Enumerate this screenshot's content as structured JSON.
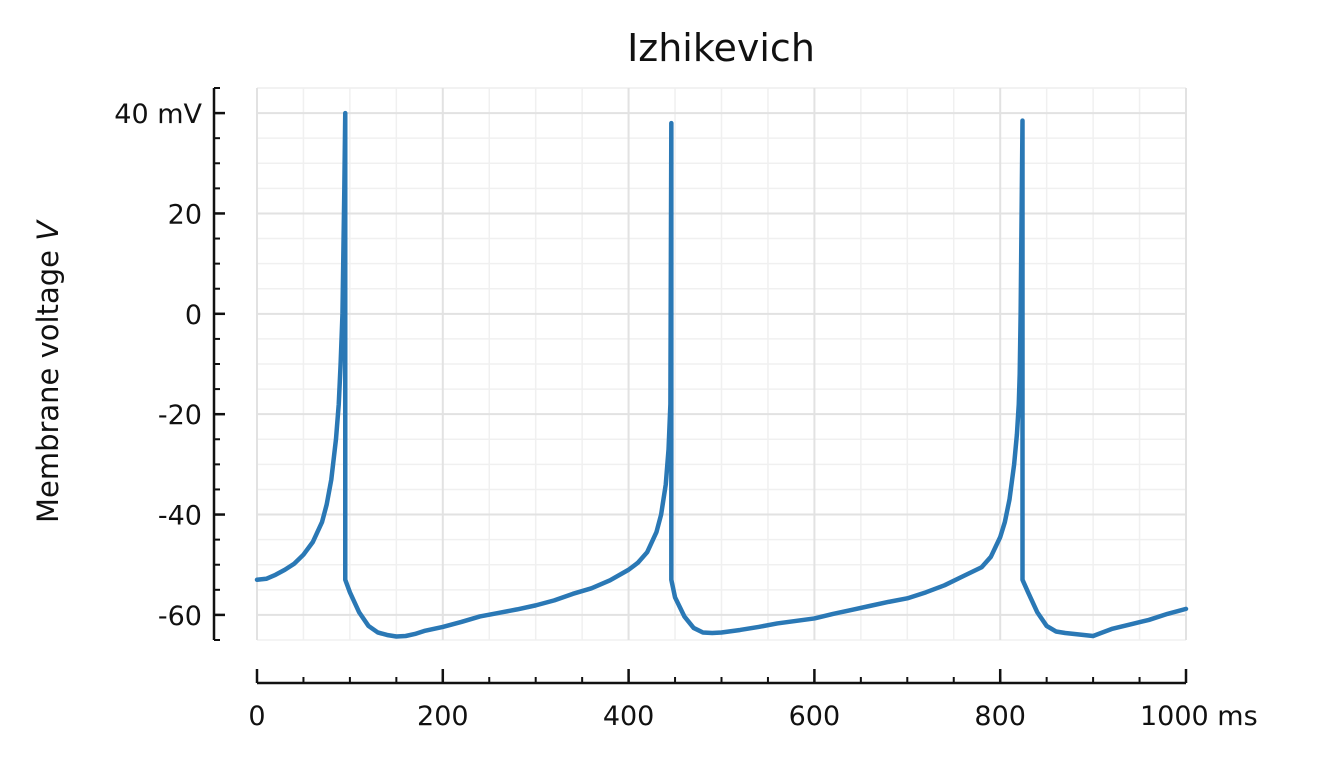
{
  "chart_data": {
    "type": "line",
    "title": "Izhikevich",
    "ylabel": "Membrane voltage",
    "ylabel_var": "V",
    "xlim": [
      0,
      1000
    ],
    "ylim": [
      -65,
      45
    ],
    "grid": true,
    "x_ticks": [
      {
        "value": 0,
        "label": "0"
      },
      {
        "value": 200,
        "label": "200"
      },
      {
        "value": 400,
        "label": "400"
      },
      {
        "value": 600,
        "label": "600"
      },
      {
        "value": 800,
        "label": "800"
      },
      {
        "value": 1000,
        "label": "1000 ms"
      }
    ],
    "y_ticks": [
      {
        "value": -60,
        "label": "-60"
      },
      {
        "value": -40,
        "label": "-40"
      },
      {
        "value": -20,
        "label": "-20"
      },
      {
        "value": 0,
        "label": "0"
      },
      {
        "value": 20,
        "label": "20"
      },
      {
        "value": 40,
        "label": "40 mV"
      }
    ],
    "color": "#2a78b5",
    "series": [
      {
        "x": [
          0,
          10,
          20,
          30,
          40,
          50,
          60,
          70,
          75,
          80,
          85,
          88,
          90,
          92,
          94,
          95,
          95,
          100,
          110,
          120,
          130,
          140,
          150,
          160,
          170,
          180,
          190,
          200,
          220,
          240,
          260,
          280,
          300,
          320,
          340,
          360,
          380,
          400,
          410,
          420,
          430,
          435,
          440,
          443,
          445,
          446,
          446,
          450,
          460,
          470,
          480,
          490,
          500,
          520,
          540,
          560,
          580,
          600,
          620,
          640,
          660,
          680,
          700,
          720,
          740,
          760,
          780,
          790,
          800,
          805,
          810,
          815,
          818,
          820,
          821,
          822,
          824,
          824,
          830,
          840,
          850,
          860,
          870,
          880,
          890,
          900,
          920,
          940,
          960,
          980,
          1000
        ],
        "y": [
          -53,
          -52.8,
          -52,
          -51,
          -49.8,
          -48,
          -45.5,
          -41.5,
          -38,
          -33,
          -25,
          -18,
          -10,
          0,
          25,
          40,
          -53,
          -55.5,
          -59.5,
          -62.2,
          -63.5,
          -64,
          -64.3,
          -64.2,
          -63.8,
          -63.2,
          -62.8,
          -62.4,
          -61.4,
          -60.3,
          -59.6,
          -58.9,
          -58.1,
          -57.1,
          -55.8,
          -54.7,
          -53.1,
          -51,
          -49.6,
          -47.5,
          -43.5,
          -40,
          -34,
          -27,
          -18,
          38,
          -53,
          -56.5,
          -60.3,
          -62.6,
          -63.5,
          -63.6,
          -63.5,
          -63,
          -62.4,
          -61.7,
          -61.2,
          -60.7,
          -59.8,
          -59,
          -58.2,
          -57.4,
          -56.7,
          -55.5,
          -54.1,
          -52.3,
          -50.5,
          -48.4,
          -44.5,
          -41.5,
          -37,
          -30,
          -24,
          -18,
          -12,
          0,
          38.5,
          -53,
          -55.5,
          -59.5,
          -62.2,
          -63.3,
          -63.6,
          -63.8,
          -64,
          -64.2,
          -62.8,
          -61.9,
          -61,
          -59.8,
          -58.8
        ]
      }
    ]
  }
}
